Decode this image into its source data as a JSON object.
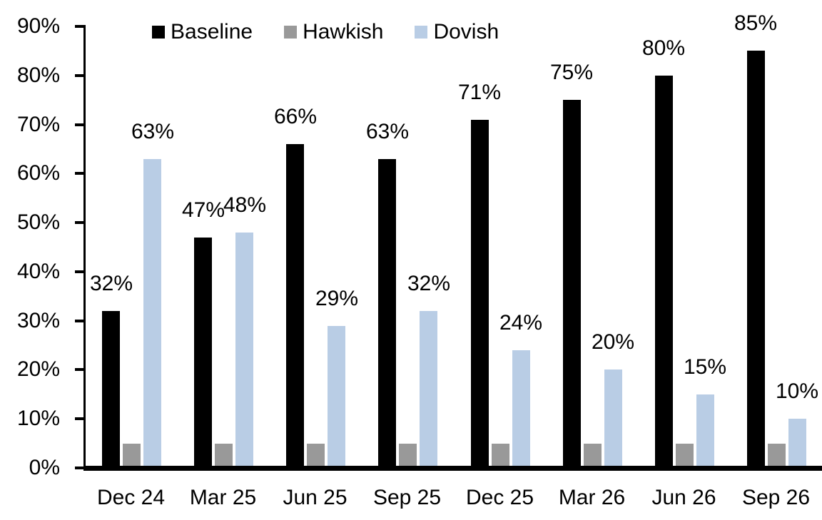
{
  "chart_data": {
    "type": "bar",
    "title": "",
    "xlabel": "",
    "ylabel": "",
    "categories": [
      "Dec 24",
      "Mar 25",
      "Jun 25",
      "Sep 25",
      "Dec 25",
      "Mar 26",
      "Jun 26",
      "Sep 26"
    ],
    "series": [
      {
        "name": "Baseline",
        "color": "#000000",
        "values": [
          32,
          47,
          66,
          63,
          71,
          75,
          80,
          85
        ],
        "data_labels": [
          "32%",
          "47%",
          "66%",
          "63%",
          "71%",
          "75%",
          "80%",
          "85%"
        ]
      },
      {
        "name": "Hawkish",
        "color": "#999999",
        "values": [
          5,
          5,
          5,
          5,
          5,
          5,
          5,
          5
        ],
        "data_labels": []
      },
      {
        "name": "Dovish",
        "color": "#B9CDE5",
        "values": [
          63,
          48,
          29,
          32,
          24,
          20,
          15,
          10
        ],
        "data_labels": [
          "63%",
          "48%",
          "29%",
          "32%",
          "24%",
          "20%",
          "15%",
          "10%"
        ]
      }
    ],
    "ylim": [
      0,
      90
    ],
    "y_tick_labels": [
      "0%",
      "10%",
      "20%",
      "30%",
      "40%",
      "50%",
      "60%",
      "70%",
      "80%",
      "90%"
    ],
    "grid": false,
    "legend_position": "top",
    "axis_color": "#000000",
    "text_color": "#000000",
    "background_color": "#FFFFFF"
  }
}
